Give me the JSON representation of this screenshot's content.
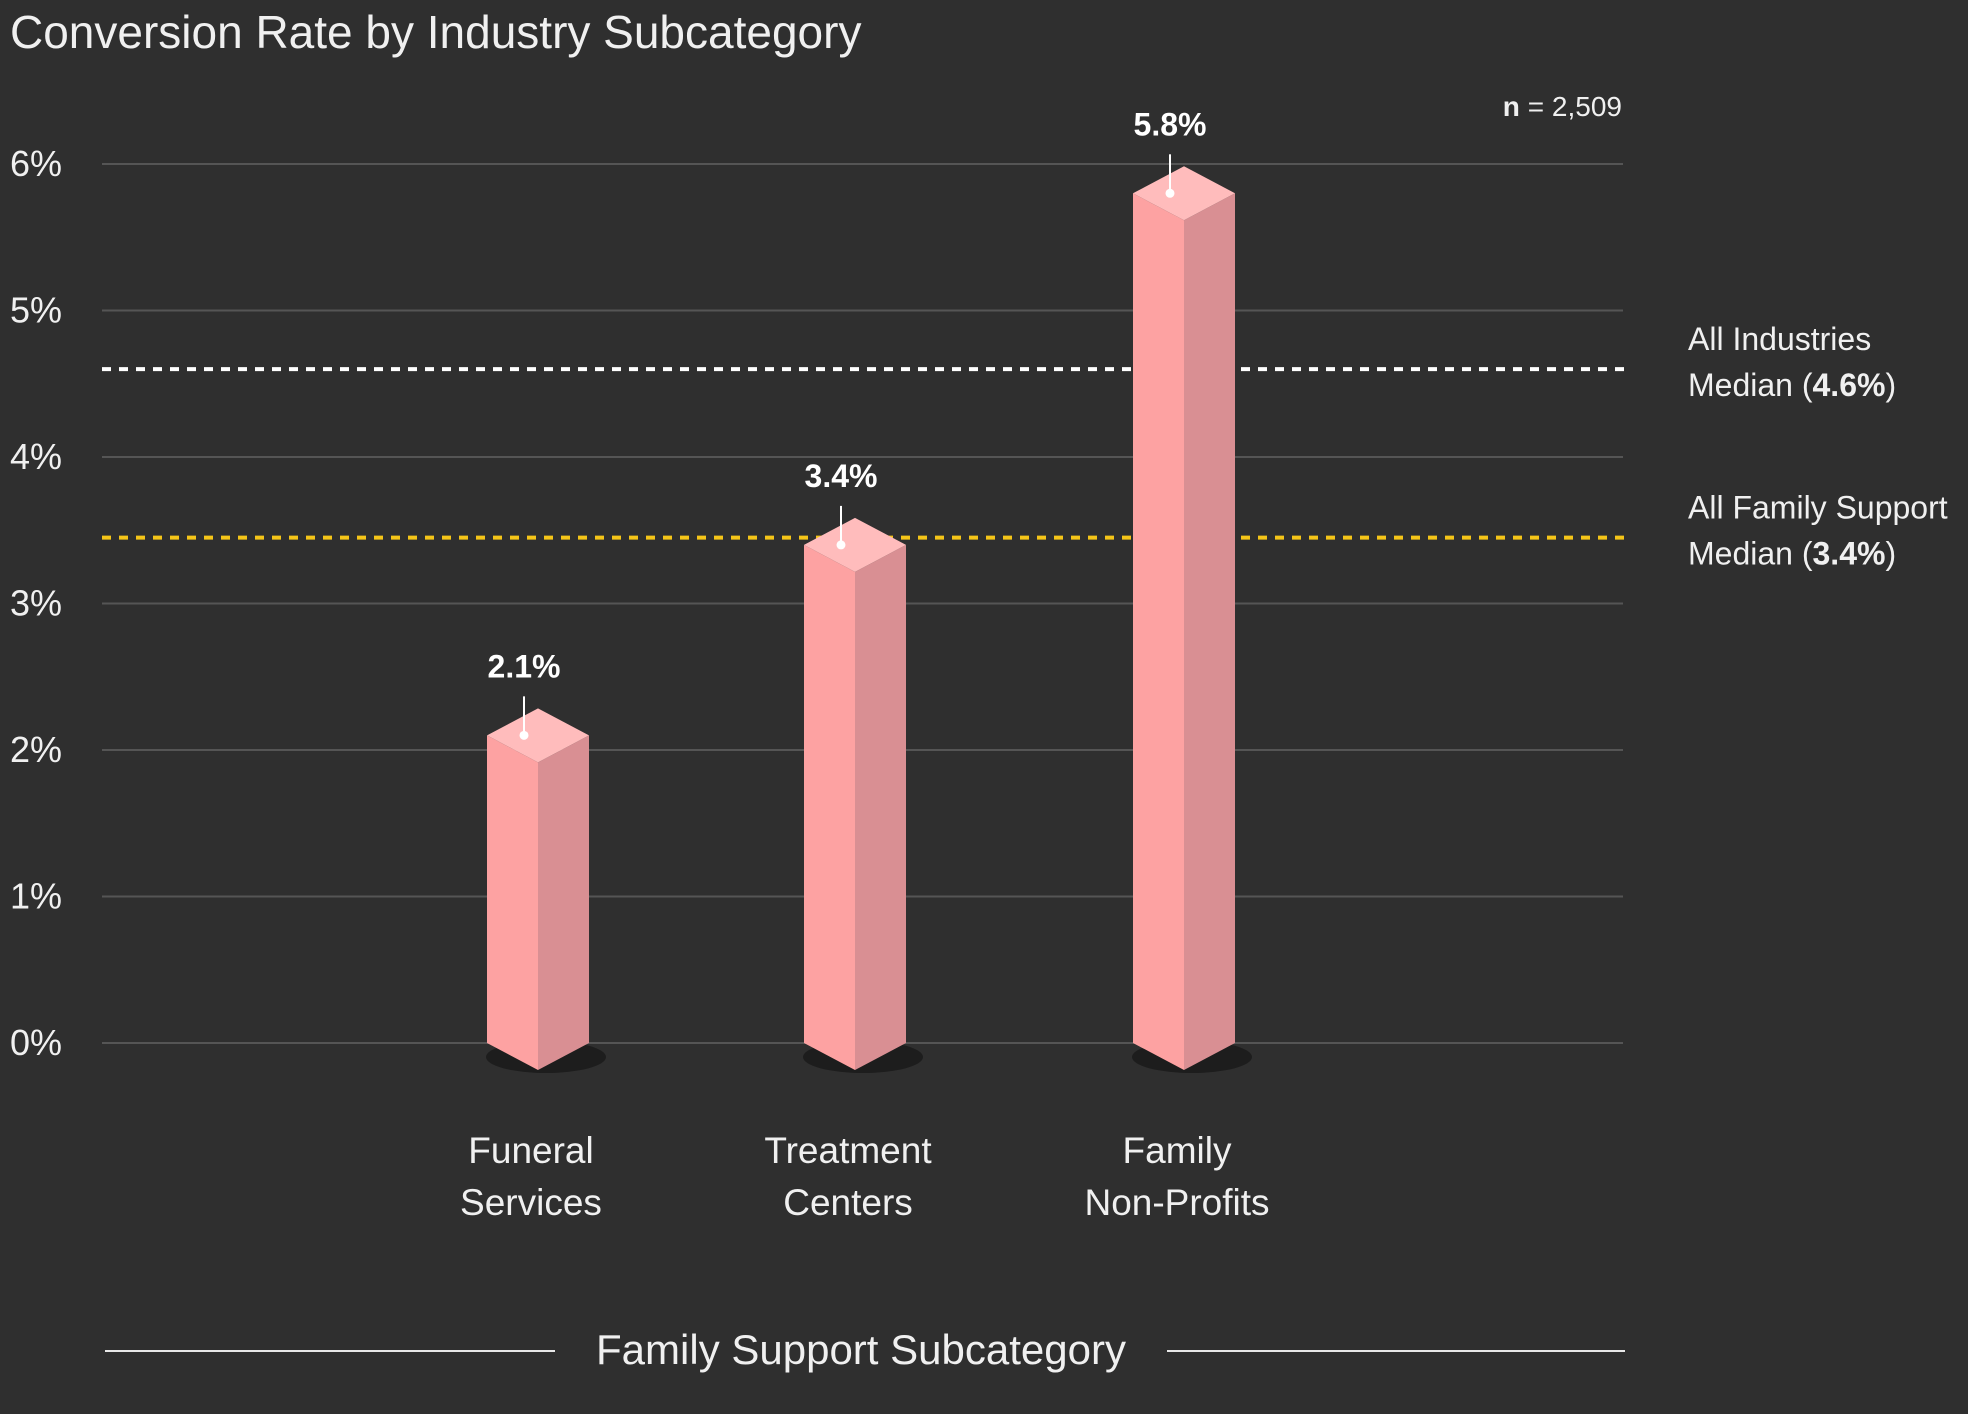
{
  "chart_data": {
    "type": "bar",
    "title": "Conversion Rate by Industry Subcategory",
    "xlabel": "Family Support Subcategory",
    "ylabel": "",
    "ylim": [
      0,
      6
    ],
    "y_ticks": [
      "0%",
      "1%",
      "2%",
      "3%",
      "4%",
      "5%",
      "6%"
    ],
    "categories": [
      [
        "Funeral",
        "Services"
      ],
      [
        "Treatment",
        "Centers"
      ],
      [
        "Family",
        "Non-Profits"
      ]
    ],
    "values": [
      2.1,
      3.4,
      5.8
    ],
    "value_labels": [
      "2.1%",
      "3.4%",
      "5.8%"
    ],
    "sample_size": {
      "label": "n",
      "value": "= 2,509"
    },
    "reference_lines": [
      {
        "value": 4.6,
        "style": "dotted",
        "color": "#ffffff",
        "label_line1": "All Industries",
        "label_line2_prefix": "Median (",
        "label_value": "4.6%",
        "label_suffix": ")"
      },
      {
        "value": 3.45,
        "style": "dotted",
        "color": "#f5c518",
        "label_line1": "All Family Support",
        "label_line2_prefix": "Median (",
        "label_value": "3.4%",
        "label_suffix": ")"
      }
    ],
    "grid": true,
    "colors": {
      "background": "#2f2f2f",
      "bar_front": "#fda2a2",
      "bar_side": "#d98f93",
      "bar_top": "#ffbcbc",
      "grid": "#555555"
    }
  }
}
